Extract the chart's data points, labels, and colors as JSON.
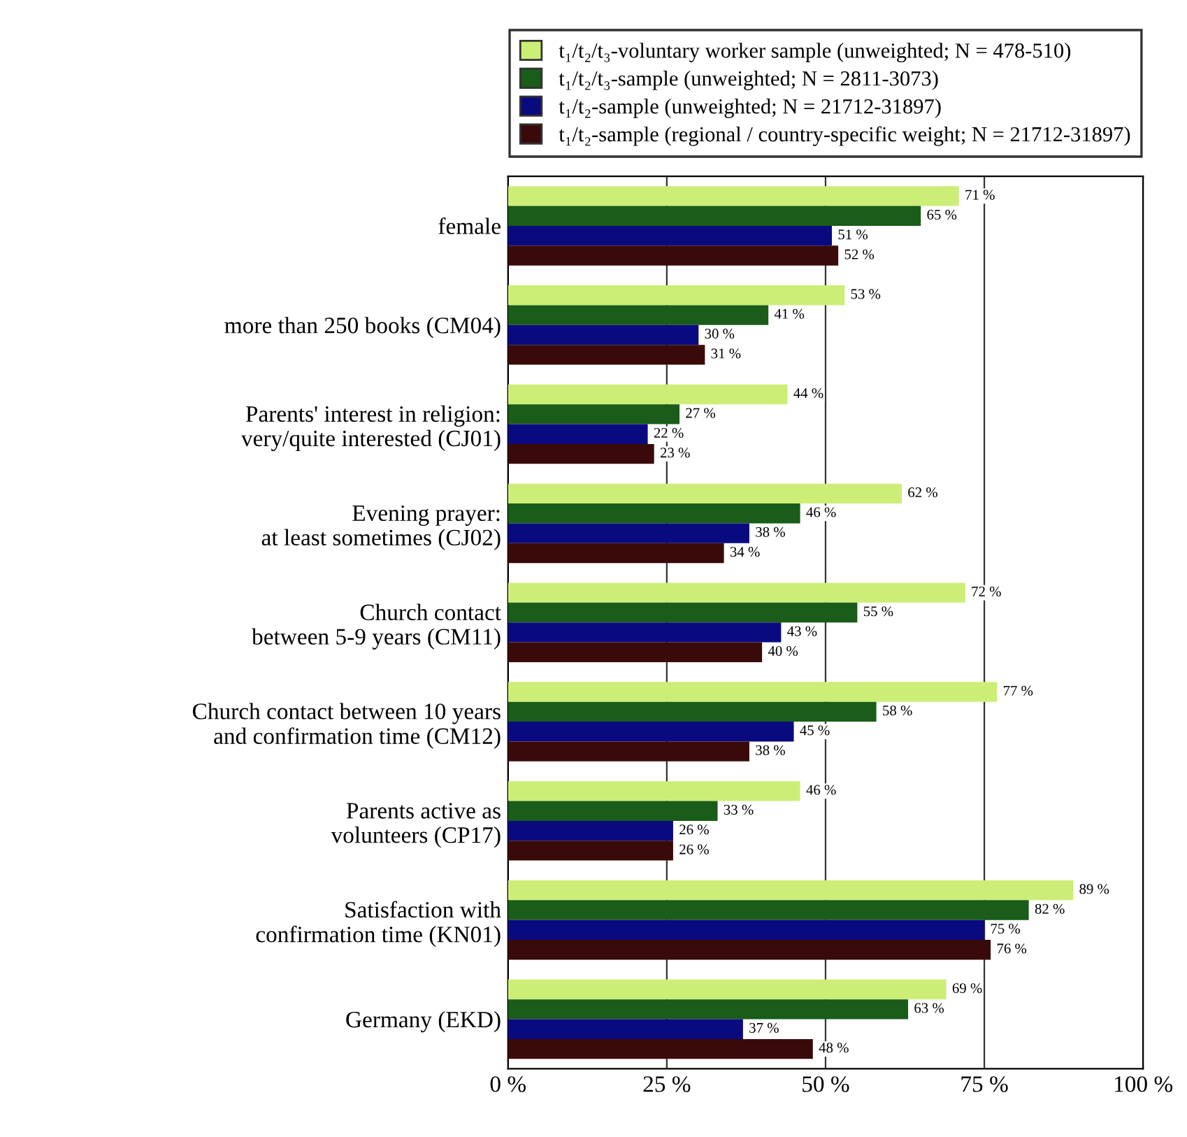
{
  "chart_data": {
    "type": "bar",
    "orientation": "horizontal",
    "categories": [
      "female",
      "more than 250 books (CM04)",
      "Parents' interest in religion:\nvery/quite interested (CJ01)",
      "Evening prayer:\nat least sometimes (CJ02)",
      "Church contact\nbetween 5-9 years (CM11)",
      "Church contact between 10 years\nand confirmation time (CM12)",
      "Parents active as\nvolunteers (CP17)",
      "Satisfaction with\nconfirmation time (KN01)",
      "Germany (EKD)"
    ],
    "series": [
      {
        "name": "t₁/t₂/t₃-voluntary worker sample (unweighted; N = 478-510)",
        "color": "#ccee77",
        "values": [
          71,
          53,
          44,
          62,
          72,
          77,
          46,
          89,
          69
        ],
        "value_labels": [
          "71 %",
          "53 %",
          "44 %",
          "62 %",
          "72 %",
          "77 %",
          "46 %",
          "89 %",
          "69 %"
        ]
      },
      {
        "name": "t₁/t₂/t₃-sample (unweighted; N = 2811-3073)",
        "color": "#1a5c1a",
        "values": [
          65,
          41,
          27,
          46,
          55,
          58,
          33,
          82,
          63
        ],
        "value_labels": [
          "65 %",
          "41 %",
          "27 %",
          "46 %",
          "55 %",
          "58 %",
          "33 %",
          "82 %",
          "63 %"
        ]
      },
      {
        "name": "t₁/t₂-sample (unweighted; N = 21712-31897)",
        "color": "#0a0a80",
        "values": [
          51,
          30,
          22,
          38,
          43,
          45,
          26,
          75,
          37
        ],
        "value_labels": [
          "51 %",
          "30 %",
          "22 %",
          "38 %",
          "43 %",
          "45 %",
          "26 %",
          "75 %",
          "37 %"
        ]
      },
      {
        "name": "t₁/t₂-sample (regional / country-specific weight; N = 21712-31897)",
        "color": "#3a0a0a",
        "values": [
          52,
          31,
          23,
          34,
          40,
          38,
          26,
          76,
          48
        ],
        "value_labels": [
          "52 %",
          "31 %",
          "23 %",
          "34 %",
          "40 %",
          "38 %",
          "26 %",
          "76 %",
          "48 %"
        ]
      }
    ],
    "xlim": [
      0,
      100
    ],
    "xticks": [
      {
        "value": 0,
        "label": "0 %"
      },
      {
        "value": 25,
        "label": "25 %"
      },
      {
        "value": 50,
        "label": "50 %"
      },
      {
        "value": 75,
        "label": "75 %"
      },
      {
        "value": 100,
        "label": "100 %"
      }
    ],
    "grid": "x",
    "legend": "top"
  }
}
